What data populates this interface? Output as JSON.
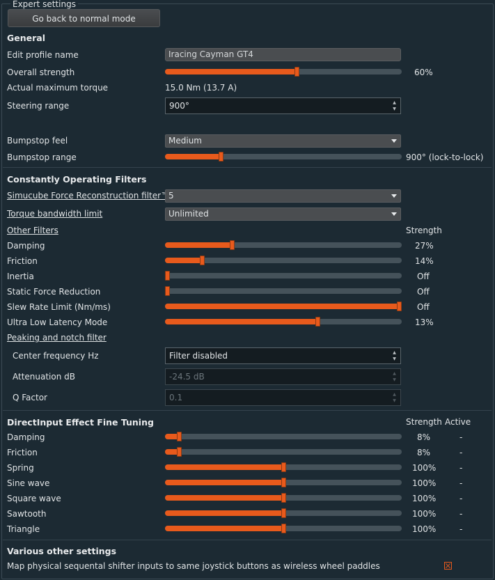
{
  "panel": {
    "title": "Expert settings",
    "normal_mode_button": "Go back to normal mode"
  },
  "general": {
    "header": "General",
    "profile_name": {
      "label": "Edit profile name",
      "value": "Iracing Cayman GT4"
    },
    "overall_strength": {
      "label": "Overall strength",
      "value": "60%",
      "level": 0.56
    },
    "max_torque": {
      "label": "Actual maximum torque",
      "value": "15.0 Nm (13.7 A)"
    },
    "steering_range": {
      "label": "Steering range",
      "value": "900°"
    },
    "bumpstop_feel": {
      "label": "Bumpstop feel",
      "value": "Medium"
    },
    "bumpstop_range": {
      "label": "Bumpstop range",
      "value": "900° (lock-to-lock)",
      "level": 0.23
    }
  },
  "filters": {
    "header": "Constantly Operating Filters",
    "reconstruction": {
      "label": "Simucube Force Reconstruction filter™",
      "value": "5"
    },
    "bandwidth": {
      "label": "Torque bandwidth limit",
      "value": "Unlimited"
    },
    "other_label": "Other Filters",
    "strength_header": "Strength",
    "items": [
      {
        "label": "Damping",
        "value": "27%",
        "level": 0.28
      },
      {
        "label": "Friction",
        "value": "14%",
        "level": 0.15
      },
      {
        "label": "Inertia",
        "value": "Off",
        "level": 0.0
      },
      {
        "label": "Static Force Reduction",
        "value": "Off",
        "level": 0.0
      },
      {
        "label": "Slew Rate Limit (Nm/ms)",
        "value": "Off",
        "level": 1.0
      },
      {
        "label": "Ultra Low Latency Mode",
        "value": "13%",
        "level": 0.65
      }
    ],
    "peaking_label": "Peaking and notch filter",
    "center_freq": {
      "label": "Center frequency Hz",
      "value": "Filter disabled"
    },
    "attenuation": {
      "label": "Attenuation dB",
      "value": "-24.5 dB"
    },
    "q_factor": {
      "label": "Q Factor",
      "value": "0.1"
    }
  },
  "directinput": {
    "header": "DirectInput Effect Fine Tuning",
    "strength_header": "Strength",
    "active_header": "Active",
    "items": [
      {
        "label": "Damping",
        "value": "8%",
        "active": "-",
        "level": 0.05
      },
      {
        "label": "Friction",
        "value": "8%",
        "active": "-",
        "level": 0.05
      },
      {
        "label": "Spring",
        "value": "100%",
        "active": "-",
        "level": 0.5
      },
      {
        "label": "Sine wave",
        "value": "100%",
        "active": "-",
        "level": 0.5
      },
      {
        "label": "Square wave",
        "value": "100%",
        "active": "-",
        "level": 0.5
      },
      {
        "label": "Sawtooth",
        "value": "100%",
        "active": "-",
        "level": 0.5
      },
      {
        "label": "Triangle",
        "value": "100%",
        "active": "-",
        "level": 0.5
      }
    ]
  },
  "other": {
    "header": "Various other settings",
    "shifter": {
      "label": "Map physical sequental shifter inputs to same joystick buttons as wireless wheel paddles",
      "checked": true
    }
  },
  "colors": {
    "accent": "#e85a1c",
    "background": "#1c2a33",
    "track": "#45525a"
  }
}
